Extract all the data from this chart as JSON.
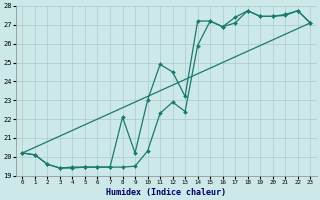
{
  "xlabel": "Humidex (Indice chaleur)",
  "bg_color": "#cde8e8",
  "grid_color": "#aacccc",
  "line_color": "#1a7a6e",
  "xlim": [
    -0.5,
    23.5
  ],
  "ylim": [
    19,
    28
  ],
  "xticks": [
    0,
    1,
    2,
    3,
    4,
    5,
    6,
    7,
    8,
    9,
    10,
    11,
    12,
    13,
    14,
    15,
    16,
    17,
    18,
    19,
    20,
    21,
    22,
    23
  ],
  "yticks": [
    19,
    20,
    21,
    22,
    23,
    24,
    25,
    26,
    27,
    28
  ],
  "line1_x": [
    0,
    1,
    2,
    3,
    4,
    5,
    6,
    7,
    8,
    9,
    10,
    11,
    12,
    13,
    14,
    15,
    16,
    17,
    18,
    19,
    20,
    21,
    22,
    23
  ],
  "line1_y": [
    20.2,
    20.1,
    19.6,
    19.4,
    19.4,
    19.45,
    19.45,
    19.45,
    19.45,
    19.5,
    20.3,
    22.3,
    22.9,
    22.4,
    25.9,
    27.2,
    26.9,
    27.1,
    27.75,
    27.45,
    27.45,
    27.5,
    27.75,
    27.1
  ],
  "line2_x": [
    0,
    1,
    2,
    3,
    4,
    5,
    6,
    7,
    8,
    9,
    10,
    11,
    12,
    13,
    14,
    15,
    16,
    17,
    18,
    19,
    20,
    21,
    22,
    23
  ],
  "line2_y": [
    20.2,
    20.1,
    19.6,
    19.4,
    19.45,
    19.45,
    19.45,
    19.45,
    22.1,
    20.2,
    23.0,
    24.9,
    24.5,
    23.2,
    27.2,
    27.2,
    26.9,
    27.4,
    27.75,
    27.45,
    27.45,
    27.55,
    27.75,
    27.1
  ],
  "line3_x": [
    0,
    23
  ],
  "line3_y": [
    20.2,
    27.1
  ]
}
